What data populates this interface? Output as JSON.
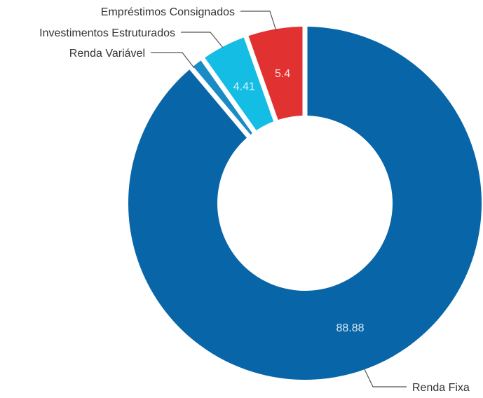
{
  "chart_data": {
    "type": "pie",
    "variant": "donut",
    "title": "",
    "categories": [
      "Renda Fixa",
      "Renda Variável",
      "Investimentos Estruturados",
      "Empréstimos Consignados"
    ],
    "values": [
      88.88,
      1.31,
      4.41,
      5.4
    ],
    "data_labels": [
      "88.88",
      "",
      "4.41",
      "5.4"
    ],
    "colors": [
      "#0866a8",
      "#1a8cc5",
      "#14bde3",
      "#e23131"
    ],
    "legend": "none"
  }
}
